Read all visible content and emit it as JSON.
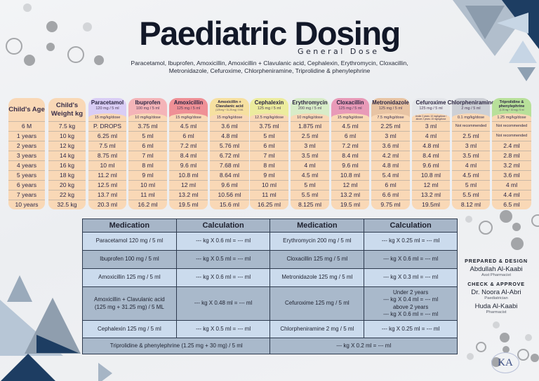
{
  "header": {
    "title": "Paediatric Dosing",
    "subtitle": "General Dose",
    "drug_list_line1": "Paracetamol, Ibuprofen, Amoxicillin, Amoxicillin + Clavulanic acid, Cephalexin, Erythromycin, Cloxacillin,",
    "drug_list_line2": "Metronidazole, Cefuroxime, Chlorpheniramine, Triprolidine & phenylephrine"
  },
  "dosing_table": {
    "age_header": "Child's Age",
    "weight_header": "Child's Weight kg",
    "ages": [
      "6 M",
      "1 years",
      "2 years",
      "3 years",
      "4 years",
      "5 years",
      "6 years",
      "7 years",
      "10 years"
    ],
    "weights": [
      "7.5 kg",
      "10 kg",
      "12 kg",
      "14 kg",
      "16 kg",
      "18 kg",
      "20 kg",
      "22 kg",
      "32.5 kg"
    ],
    "drugs": [
      {
        "name": "Paracetamol",
        "conc": "120 mg / 5 ml",
        "dose": "15 mg/kg/dose",
        "color": "#d9cdf5",
        "values": [
          "P. DROPS",
          "6.25 ml",
          "7.5 ml",
          "8.75 ml",
          "10 ml",
          "11.2 ml",
          "12.5 ml",
          "13.7 ml",
          "20.3 ml"
        ]
      },
      {
        "name": "Ibuprofen",
        "conc": "100 mg / 5 ml",
        "dose": "10 mg/kg/dose",
        "color": "#f4b4b8",
        "values": [
          "3.75 ml",
          "5 ml",
          "6 ml",
          "7 ml",
          "8 ml",
          "9 ml",
          "10 ml",
          "11 ml",
          "16.2 ml"
        ]
      },
      {
        "name": "Amoxicillin",
        "conc": "125 mg / 5 ml",
        "dose": "15 mg/kg/dose",
        "color": "#ef9096",
        "values": [
          "4.5 ml",
          "6 ml",
          "7.2 ml",
          "8.4 ml",
          "9.6 ml",
          "10.8 ml",
          "12 ml",
          "13.2 ml",
          "19.5 ml"
        ]
      },
      {
        "name": "Amoxicillin + Clavulanic acid",
        "conc": "(125 mg + 31.25 mg) / 5 ML",
        "dose": "15 mg/kg/dose",
        "color": "#f6e0a0",
        "values": [
          "3.6 ml",
          "4.8 ml",
          "5.76 ml",
          "6.72 ml",
          "7.68 ml",
          "8.64 ml",
          "9.6 ml",
          "10.56 ml",
          "15.6 ml"
        ]
      },
      {
        "name": "Cephalexin",
        "conc": "125 mg / 5 ml",
        "dose": "12.5 mg/kg/dose",
        "color": "#ecec9e",
        "values": [
          "3.75 ml",
          "5 ml",
          "6 ml",
          "7 ml",
          "8 ml",
          "9 ml",
          "10 ml",
          "11 ml",
          "16.25 ml"
        ]
      },
      {
        "name": "Erythromycin",
        "conc": "200 mg / 5 ml",
        "dose": "10 mg/kg/dose",
        "color": "#d8ecc8",
        "values": [
          "1.875 ml",
          "2.5 ml",
          "3 ml",
          "3.5 ml",
          "4 ml",
          "4.5 ml",
          "5 ml",
          "5.5 ml",
          "8.125 ml"
        ]
      },
      {
        "name": "Cloxacillin",
        "conc": "125 mg / 5 ml",
        "dose": "15 mg/kg/dose",
        "color": "#e89ab8",
        "values": [
          "4.5 ml",
          "6 ml",
          "7.2 ml",
          "8.4 ml",
          "9.6 ml",
          "10.8 ml",
          "12 ml",
          "13.2 ml",
          "19.5 ml"
        ]
      },
      {
        "name": "Metronidazole",
        "conc": "125 mg / 5 ml",
        "dose": "7.5 mg/kg/dose",
        "color": "#e8c4a4",
        "values": [
          "2.25 ml",
          "3 ml",
          "3.6 ml",
          "4.2 ml",
          "4.8 ml",
          "5.4 ml",
          "6 ml",
          "6.6 ml",
          "9.75 ml"
        ]
      },
      {
        "name": "Cefuroxime",
        "conc": "125 mg / 5 ml",
        "dose": "Under 2 years: 10 mg/kg/dose / above 2 years: 15 mg/kg/dose",
        "color": "#e4e6ea",
        "values": [
          "3 ml",
          "4 ml",
          "4.8 ml",
          "8.4 ml",
          "9.6 ml",
          "10.8 ml",
          "12 ml",
          "13.2 ml",
          "19.5ml"
        ]
      },
      {
        "name": "Chlorpheniramine",
        "conc": "2 mg / 5 ml",
        "dose": "0.1 mg/kg/dose",
        "color": "#cdd0d6",
        "values": [
          "Not recommended",
          "2.5  ml",
          "3 ml",
          "3.5 ml",
          "4 ml",
          "4.5 ml",
          "5 ml",
          "5.5 ml",
          "8.12 ml"
        ]
      },
      {
        "name": "Triprolidine & phenylephrine",
        "conc": "(1.25 mg + 30 mg) / 5 ml",
        "dose": "1.25 mg/kg/dose",
        "color": "#b8e09a",
        "values": [
          "Not recommended",
          "Not recommended",
          "2.4 ml",
          "2.8 ml",
          "3.2 ml",
          "3.6 ml",
          "4 ml",
          "4.4 ml",
          "6.5 ml"
        ]
      }
    ]
  },
  "calc_table": {
    "headers": [
      "Medication",
      "Calculation",
      "Medication",
      "Calculation"
    ],
    "rows": [
      {
        "med1": "Paracetamol 120 mg / 5 ml",
        "calc1": "--- kg X 0.6 ml = --- ml",
        "med2": "Erythromycin 200 mg / 5 ml",
        "calc2": "--- kg X 0.25 ml = --- ml"
      },
      {
        "med1": "Ibuprofen 100 mg / 5 ml",
        "calc1": "--- kg X 0.5 ml = --- ml",
        "med2": "Cloxacillin 125 mg / 5 ml",
        "calc2": "--- kg X 0.6 ml = --- ml"
      },
      {
        "med1": "Amoxicillin 125 mg / 5 ml",
        "calc1": "--- kg X 0.6 ml = --- ml",
        "med2": "Metronidazole 125 mg / 5 ml",
        "calc2": "--- kg X 0.3 ml = --- ml"
      },
      {
        "med1a": "Amoxicillin + Clavulanic acid",
        "med1b": "(125 mg + 31.25 mg) / 5 ML",
        "calc1": "--- kg X 0.48 ml = --- ml",
        "med2": "Cefuroxime 125 mg / 5 ml",
        "calc2_l1": "Under 2 years",
        "calc2_l2": "--- kg X 0.4 ml = --- ml",
        "calc2_l3": "above 2 years",
        "calc2_l4": "--- kg X 0.6 ml = --- ml"
      },
      {
        "med1": "Cephalexin 125 mg / 5 ml",
        "calc1": "--- kg X 0.5 ml = --- ml",
        "med2": "Chlorpheniramine 2 mg / 5 ml",
        "calc2": "--- kg X 0.25 ml = --- ml"
      },
      {
        "med_span": "Triprolidine & phenylephrine  (1.25 mg + 30 mg) / 5 ml",
        "calc_span": "--- kg X 0.2 ml = --- ml"
      }
    ]
  },
  "credits": {
    "prepared_label": "PREPARED & DESIGN",
    "preparer_name": "Abdullah Al-Kaabi",
    "preparer_role": "Asst Pharmacist",
    "check_label": "CHECK & APPROVE",
    "checker1_name": "Dr. Noora Al-Abri",
    "checker1_role": "Paediatrician",
    "checker2_name": "Huda Al-Kaabi",
    "checker2_role": "Pharmacist",
    "logo_text": "KA"
  }
}
